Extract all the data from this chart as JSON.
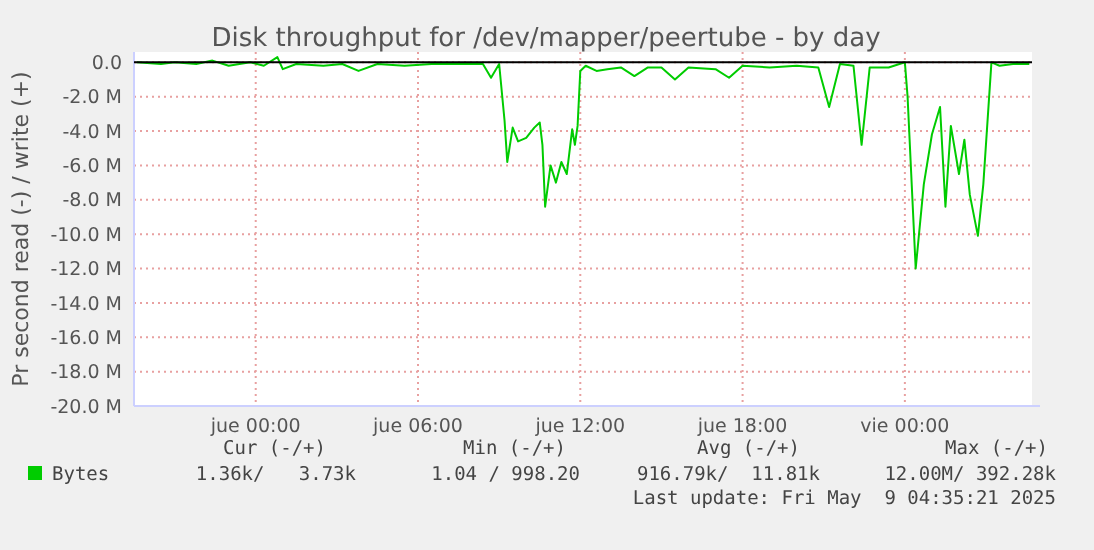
{
  "chart_data": {
    "type": "line",
    "title": "Disk throughput for /dev/mapper/peertube - by day",
    "ylabel": "Pr second read (-) / write (+)",
    "x": [
      "2025-05-07T19:36",
      "2025-05-07T20:30",
      "2025-05-07T21:00",
      "2025-05-07T21:48",
      "2025-05-07T22:24",
      "2025-05-07T23:00",
      "2025-05-07T23:48",
      "2025-05-08T00:18",
      "2025-05-08T00:48",
      "2025-05-08T01:00",
      "2025-05-08T01:30",
      "2025-05-08T02:30",
      "2025-05-08T03:12",
      "2025-05-08T03:48",
      "2025-05-08T04:30",
      "2025-05-08T05:30",
      "2025-05-08T06:30",
      "2025-05-08T07:30",
      "2025-05-08T08:24",
      "2025-05-08T08:42",
      "2025-05-08T09:00",
      "2025-05-08T09:12",
      "2025-05-08T09:18",
      "2025-05-08T09:30",
      "2025-05-08T09:42",
      "2025-05-08T10:00",
      "2025-05-08T10:18",
      "2025-05-08T10:30",
      "2025-05-08T10:36",
      "2025-05-08T10:42",
      "2025-05-08T10:54",
      "2025-05-08T11:06",
      "2025-05-08T11:18",
      "2025-05-08T11:30",
      "2025-05-08T11:42",
      "2025-05-08T11:48",
      "2025-05-08T11:54",
      "2025-05-08T12:00",
      "2025-05-08T12:12",
      "2025-05-08T12:36",
      "2025-05-08T13:00",
      "2025-05-08T13:30",
      "2025-05-08T14:00",
      "2025-05-08T14:30",
      "2025-05-08T15:00",
      "2025-05-08T15:30",
      "2025-05-08T16:00",
      "2025-05-08T17:00",
      "2025-05-08T17:30",
      "2025-05-08T18:00",
      "2025-05-08T19:00",
      "2025-05-08T20:00",
      "2025-05-08T20:48",
      "2025-05-08T21:12",
      "2025-05-08T21:36",
      "2025-05-08T22:06",
      "2025-05-08T22:24",
      "2025-05-08T22:42",
      "2025-05-08T23:24",
      "2025-05-09T00:00",
      "2025-05-09T00:06",
      "2025-05-09T00:24",
      "2025-05-09T00:42",
      "2025-05-09T01:00",
      "2025-05-09T01:18",
      "2025-05-09T01:30",
      "2025-05-09T01:42",
      "2025-05-09T02:00",
      "2025-05-09T02:12",
      "2025-05-09T02:24",
      "2025-05-09T02:42",
      "2025-05-09T02:54",
      "2025-05-09T03:12",
      "2025-05-09T03:30",
      "2025-05-09T04:00",
      "2025-05-09T04:36"
    ],
    "series": [
      {
        "name": "Bytes",
        "color": "#00cc00",
        "values": [
          0,
          -0.1,
          0,
          -0.1,
          0.1,
          -0.2,
          0,
          -0.2,
          0.3,
          -0.4,
          -0.1,
          -0.2,
          -0.1,
          -0.5,
          -0.1,
          -0.2,
          -0.1,
          -0.1,
          -0.1,
          -0.9,
          -0.1,
          -3.4,
          -5.8,
          -3.8,
          -4.6,
          -4.4,
          -3.8,
          -3.5,
          -4.8,
          -8.4,
          -6,
          -7,
          -5.8,
          -6.5,
          -3.9,
          -4.8,
          -3.7,
          -0.5,
          -0.2,
          -0.5,
          -0.4,
          -0.3,
          -0.8,
          -0.3,
          -0.3,
          -1,
          -0.3,
          -0.4,
          -0.9,
          -0.2,
          -0.3,
          -0.2,
          -0.3,
          -2.6,
          -0.1,
          -0.2,
          -4.8,
          -0.3,
          -0.3,
          0,
          -2,
          -12,
          -7.1,
          -4.2,
          -2.6,
          -8.4,
          -3.7,
          -6.5,
          -4.5,
          -7.7,
          -10.1,
          -7.1,
          0,
          -0.2,
          -0.1,
          -0.1
        ]
      }
    ],
    "xlim": [
      "2025-05-07T19:30",
      "2025-05-09T04:42"
    ],
    "xticks": [
      {
        "value": "2025-05-08T00:00",
        "label": "jue 00:00"
      },
      {
        "value": "2025-05-08T06:00",
        "label": "jue 06:00"
      },
      {
        "value": "2025-05-08T12:00",
        "label": "jue 12:00"
      },
      {
        "value": "2025-05-08T18:00",
        "label": "jue 18:00"
      },
      {
        "value": "2025-05-09T00:00",
        "label": "vie 00:00"
      }
    ],
    "ylim": [
      -20,
      0.6
    ],
    "yticks": [
      {
        "value": 0,
        "label": "0.0"
      },
      {
        "value": -2,
        "label": "-2.0 M"
      },
      {
        "value": -4,
        "label": "-4.0 M"
      },
      {
        "value": -6,
        "label": "-6.0 M"
      },
      {
        "value": -8,
        "label": "-8.0 M"
      },
      {
        "value": -10,
        "label": "-10.0 M"
      },
      {
        "value": -12,
        "label": "-12.0 M"
      },
      {
        "value": -14,
        "label": "-14.0 M"
      },
      {
        "value": -16,
        "label": "-16.0 M"
      },
      {
        "value": -18,
        "label": "-18.0 M"
      },
      {
        "value": -20,
        "label": "-20.0 M"
      }
    ],
    "ref_lines": [
      {
        "axis": "y",
        "value": 0,
        "color": "#000000"
      }
    ],
    "grid": true,
    "legend": "bottom",
    "marker": "none",
    "line_style": "solid",
    "annotations": [
      "Cur (-/+)",
      "Min (-/+)",
      "Avg (-/+)",
      "Max (-/+)",
      "1.36k/   3.73k",
      "1.04 / 998.20",
      "916.79k/  11.81k",
      "12.00M/ 392.28k",
      "Last update: Fri May  9 04:35:21 2025"
    ]
  }
}
